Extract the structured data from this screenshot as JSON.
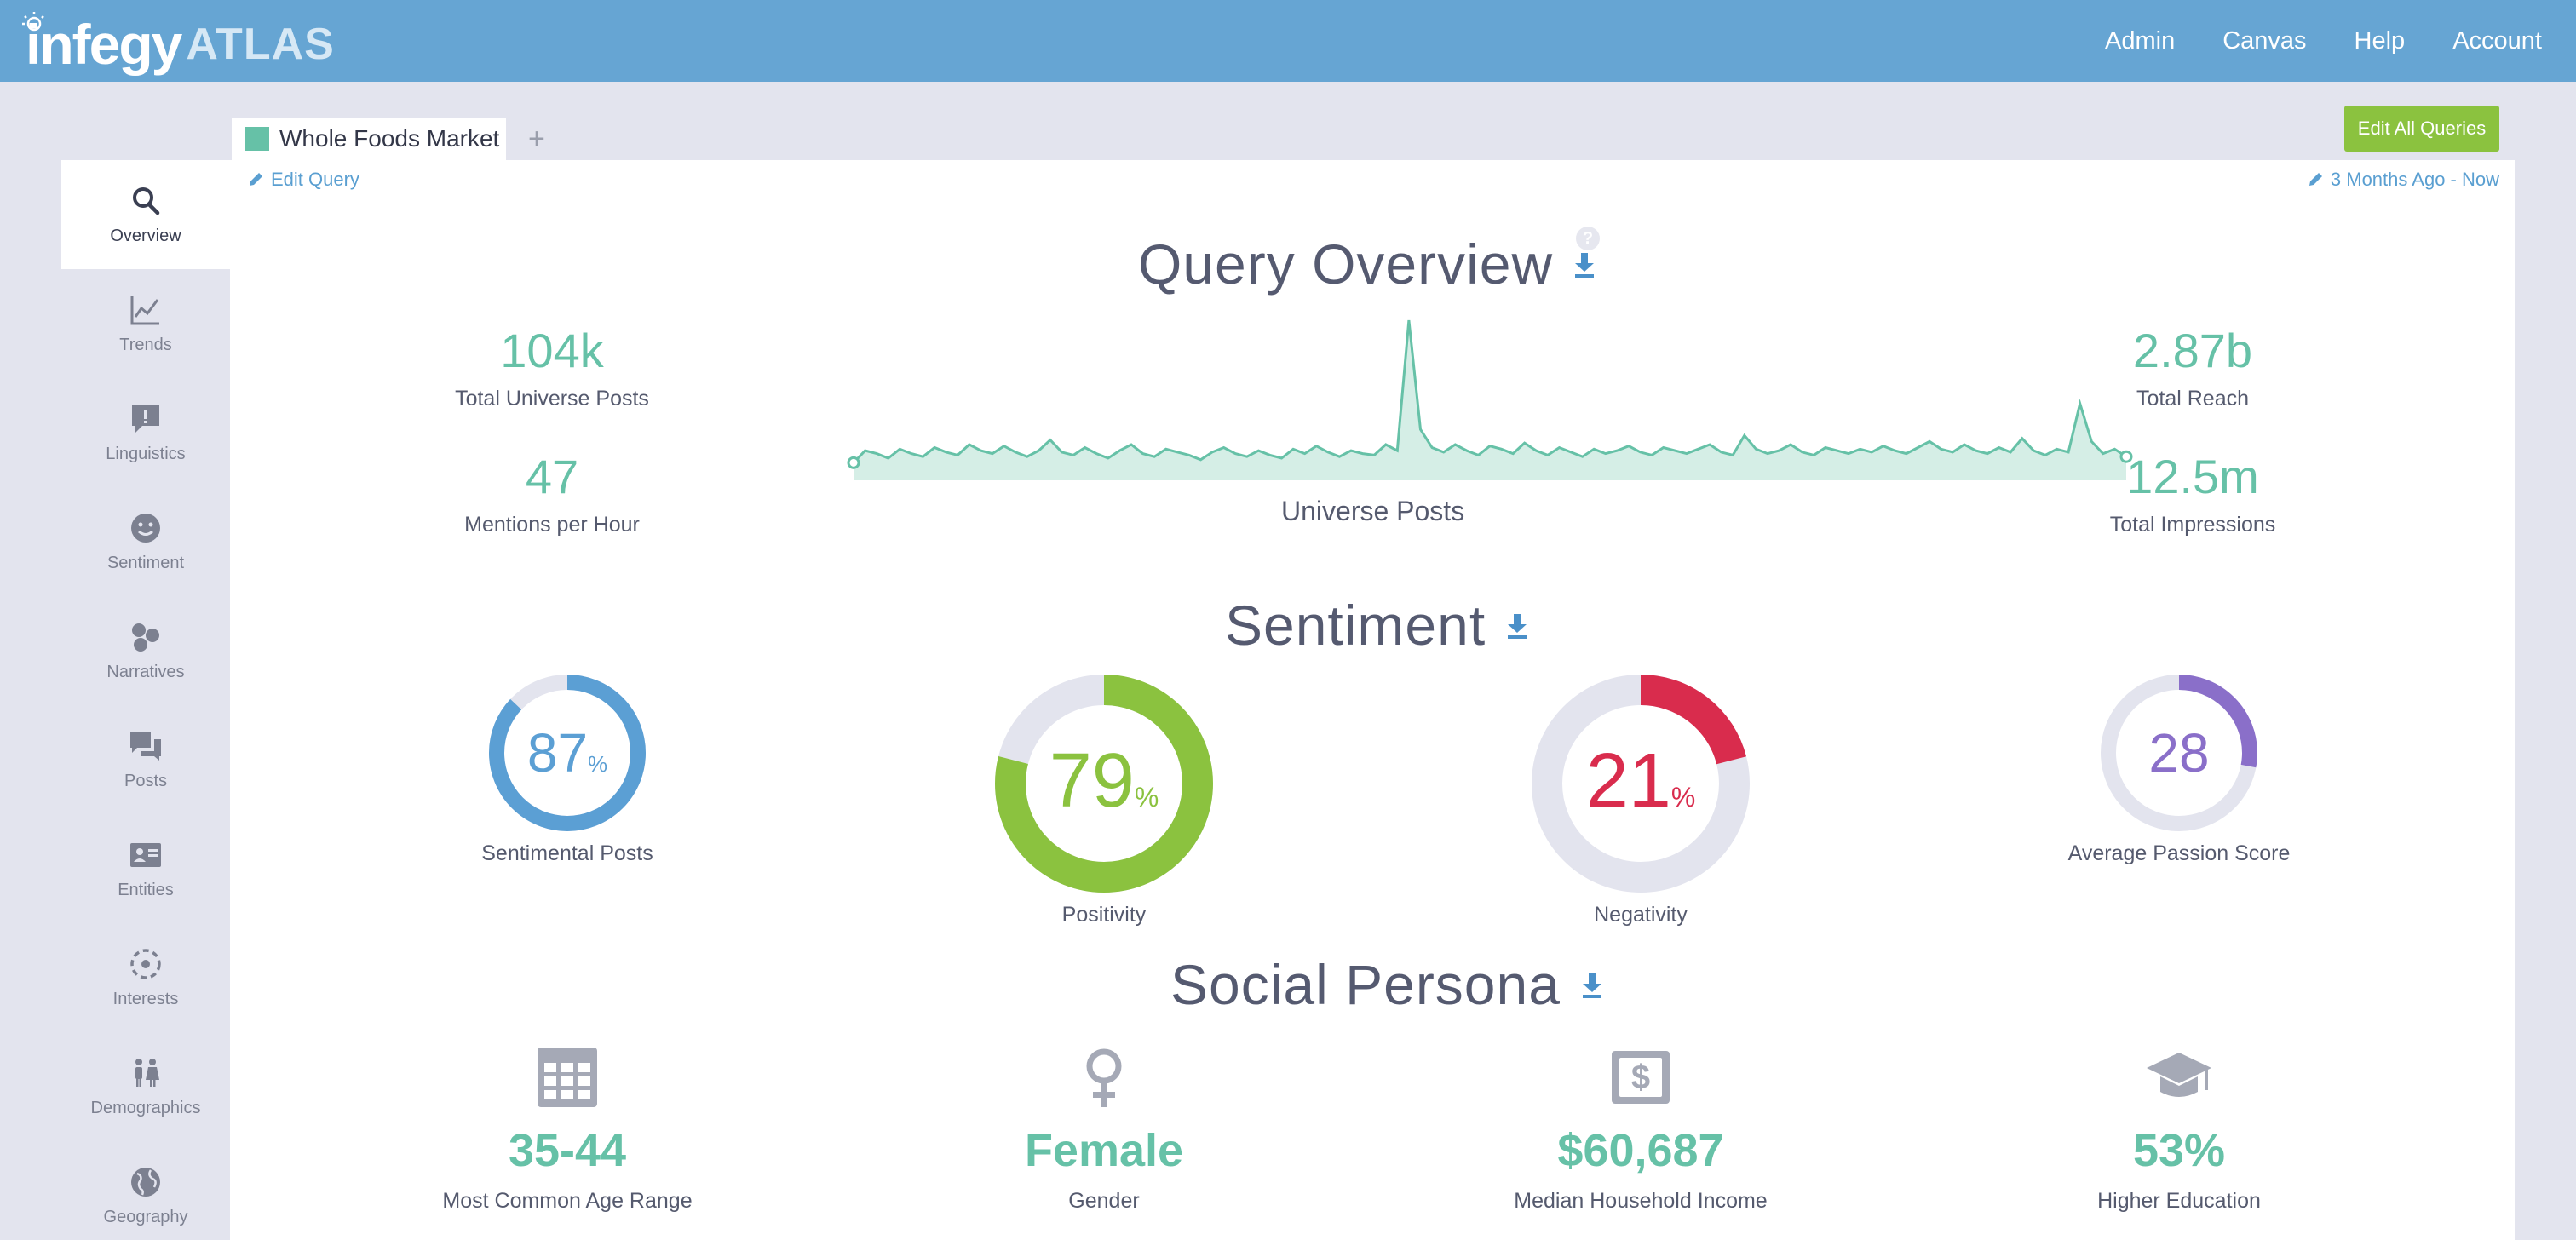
{
  "header": {
    "brand": "infegy",
    "product": "ATLAS",
    "nav": [
      "Admin",
      "Canvas",
      "Help",
      "Account"
    ]
  },
  "sidebar": {
    "items": [
      {
        "label": "Overview",
        "icon": "search-icon"
      },
      {
        "label": "Trends",
        "icon": "line-chart-icon"
      },
      {
        "label": "Linguistics",
        "icon": "speech-alert-icon"
      },
      {
        "label": "Sentiment",
        "icon": "smiley-icon"
      },
      {
        "label": "Narratives",
        "icon": "bubbles-icon"
      },
      {
        "label": "Posts",
        "icon": "chat-icon"
      },
      {
        "label": "Entities",
        "icon": "id-card-icon"
      },
      {
        "label": "Interests",
        "icon": "target-icon"
      },
      {
        "label": "Demographics",
        "icon": "people-icon"
      },
      {
        "label": "Geography",
        "icon": "globe-icon"
      }
    ]
  },
  "tabs": {
    "query_name": "Whole Foods Market",
    "query_color": "#66c1a7",
    "add_label": "+",
    "edit_all_label": "Edit All Queries"
  },
  "main": {
    "edit_query_label": "Edit Query",
    "date_range_label": "3 Months Ago - Now",
    "overview_title": "Query Overview",
    "help_label": "?",
    "stats": {
      "total_universe_posts": {
        "value": "104k",
        "label": "Total Universe Posts"
      },
      "mentions_per_hour": {
        "value": "47",
        "label": "Mentions per Hour"
      },
      "total_reach": {
        "value": "2.87b",
        "label": "Total Reach"
      },
      "total_impressions": {
        "value": "12.5m",
        "label": "Total Impressions"
      }
    },
    "chart_label": "Universe Posts",
    "sentiment_title": "Sentiment",
    "sentiment": {
      "sentimental_posts": {
        "value": "87",
        "unit": "%",
        "label": "Sentimental Posts",
        "fraction": 0.87,
        "color": "#5b9fd4"
      },
      "positivity": {
        "value": "79",
        "unit": "%",
        "label": "Positivity",
        "fraction": 0.79,
        "color": "#8bc23f"
      },
      "negativity": {
        "value": "21",
        "unit": "%",
        "label": "Negativity",
        "fraction": 0.21,
        "color": "#d92c4d"
      },
      "passion": {
        "value": "28",
        "unit": "",
        "label": "Average Passion Score",
        "fraction": 0.28,
        "color": "#8a6fc9"
      }
    },
    "persona_title": "Social Persona",
    "persona": {
      "age": {
        "value": "35-44",
        "label": "Most Common Age Range",
        "icon": "calendar-icon"
      },
      "gender": {
        "value": "Female",
        "label": "Gender",
        "icon": "female-icon"
      },
      "income": {
        "value": "$60,687",
        "label": "Median Household Income",
        "icon": "dollar-icon"
      },
      "education": {
        "value": "53%",
        "label": "Higher Education",
        "icon": "graduation-cap-icon"
      }
    }
  },
  "chart_data": {
    "type": "area",
    "title": "Universe Posts",
    "xlabel": "",
    "ylabel": "",
    "values": [
      6,
      14,
      12,
      9,
      15,
      12,
      10,
      16,
      13,
      11,
      18,
      14,
      12,
      17,
      13,
      10,
      14,
      21,
      13,
      11,
      16,
      12,
      9,
      14,
      18,
      12,
      10,
      15,
      13,
      11,
      8,
      13,
      16,
      12,
      10,
      14,
      11,
      9,
      15,
      12,
      17,
      13,
      10,
      14,
      12,
      11,
      18,
      14,
      100,
      28,
      16,
      13,
      18,
      14,
      11,
      17,
      15,
      12,
      19,
      14,
      11,
      16,
      13,
      10,
      15,
      12,
      14,
      17,
      13,
      11,
      16,
      14,
      12,
      15,
      18,
      13,
      11,
      24,
      15,
      12,
      14,
      18,
      13,
      11,
      16,
      14,
      12,
      15,
      13,
      17,
      14,
      12,
      16,
      20,
      15,
      13,
      18,
      14,
      12,
      16,
      13,
      22,
      14,
      11,
      15,
      13,
      45,
      20,
      12,
      15,
      10
    ]
  }
}
